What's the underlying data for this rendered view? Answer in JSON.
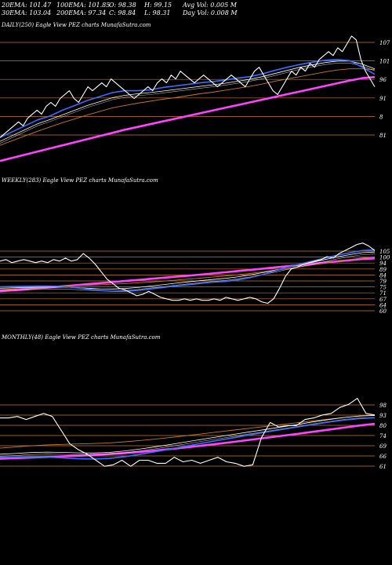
{
  "header": {
    "ema20": "20EMA: 101.47",
    "ema100": "100EMA: 101.85",
    "open": "O: 98.38",
    "high": "H: 99.15",
    "avg_vol": "Avg Vol: 0.005 M",
    "ema30": "30EMA: 103.04",
    "ema200": "200EMA: 97.34",
    "close": "C: 98.84",
    "low": "L: 98.31",
    "day_vol": "Day Vol: 0.008 M"
  },
  "colors": {
    "price": "#ffffff",
    "grid": "#c8782a",
    "ema_fast": "#3a6cff",
    "ema_mid": "#ffffff",
    "ema_slow": "#c8782a",
    "ema_200": "#ff44ff"
  },
  "chart_data": [
    {
      "type": "line",
      "title": "DAILY(250) Eagle View PEZ charts MunafaSutra.com",
      "ticks": [
        "107",
        "101",
        "96",
        "91",
        "8",
        "81"
      ],
      "price": [
        86,
        87,
        88,
        89,
        90,
        89,
        91,
        92,
        93,
        92,
        94,
        95,
        94,
        96,
        97,
        98,
        96,
        95,
        97,
        99,
        98,
        99,
        100,
        99,
        101,
        100,
        99,
        98,
        97,
        96,
        97,
        98,
        99,
        98,
        100,
        101,
        100,
        102,
        101,
        103,
        102,
        101,
        100,
        101,
        102,
        101,
        100,
        99,
        100,
        101,
        102,
        101,
        100,
        99,
        101,
        103,
        104,
        102,
        100,
        98,
        97,
        99,
        101,
        103,
        102,
        104,
        103,
        105,
        104,
        106,
        107,
        108,
        107,
        109,
        108,
        110,
        112,
        111,
        106,
        103,
        101,
        99
      ],
      "ema_fast": [
        86,
        87.5,
        89,
        90.5,
        91.5,
        93,
        94.2,
        95.5,
        96.5,
        97.5,
        98,
        98,
        98.2,
        98.8,
        99.2,
        99.6,
        100,
        100.3,
        100.7,
        101.2,
        101.6,
        102.3,
        103.2,
        104,
        104.7,
        105.3,
        105.8,
        106,
        105.7,
        104,
        102.2
      ],
      "ema_mid": [
        85,
        86.5,
        88,
        89.5,
        90.6,
        91.8,
        93,
        94.2,
        95.2,
        96.2,
        96.8,
        97.2,
        97.5,
        97.9,
        98.3,
        98.7,
        99.1,
        99.5,
        99.9,
        100.4,
        100.9,
        101.6,
        102.4,
        103.2,
        104,
        104.6,
        105.2,
        105.6,
        105.6,
        104.8,
        103.6
      ],
      "ema_slow": [
        84,
        85.2,
        86.4,
        87.6,
        88.7,
        89.8,
        90.8,
        91.8,
        92.7,
        93.6,
        94.2,
        94.8,
        95.3,
        95.8,
        96.2,
        96.7,
        97.2,
        97.6,
        98.1,
        98.6,
        99.1,
        99.7,
        100.4,
        101,
        101.6,
        102.2,
        102.8,
        103.3,
        103.6,
        103.6,
        103.4
      ],
      "ema_200": [
        80,
        80.8,
        81.6,
        82.4,
        83.2,
        84,
        84.8,
        85.6,
        86.4,
        87.2,
        88,
        88.7,
        89.4,
        90.1,
        90.8,
        91.5,
        92.2,
        92.9,
        93.6,
        94.3,
        95,
        95.7,
        96.4,
        97.1,
        97.8,
        98.5,
        99.2,
        99.9,
        100.6,
        101.2,
        101.5
      ],
      "ylim": [
        78,
        114
      ]
    },
    {
      "type": "line",
      "title": "WEEKLY(283) Eagle View PEZ charts MunafaSutra.com",
      "ticks": [
        "105",
        "100",
        "94",
        "89",
        "84",
        "79",
        "75",
        "71",
        "67",
        "64",
        "60"
      ],
      "price": [
        92,
        93,
        91,
        92,
        93,
        92,
        91,
        92,
        91,
        93,
        92,
        94,
        92,
        93,
        97,
        94,
        90,
        85,
        80,
        77,
        74,
        73,
        71,
        69,
        70,
        72,
        70,
        68,
        67,
        66,
        66,
        67,
        66,
        67,
        66,
        66,
        67,
        66,
        68,
        67,
        66,
        67,
        68,
        67,
        65,
        64,
        67,
        74,
        82,
        87,
        88,
        90,
        91,
        92,
        93,
        95,
        94,
        97,
        99,
        101,
        103,
        104,
        102,
        99
      ],
      "ema_fast": [
        75,
        75.2,
        75.3,
        75.4,
        75.4,
        75.2,
        74.5,
        73.5,
        72.5,
        72,
        72,
        72.5,
        73.5,
        74.5,
        75.5,
        76.3,
        77.2,
        78,
        78.5,
        79.5,
        81,
        83,
        85.5,
        88,
        90,
        92,
        94,
        96,
        97.5,
        99,
        99.5
      ],
      "ema_mid": [
        74,
        74.3,
        74.5,
        74.7,
        74.8,
        74.8,
        74.5,
        74,
        73.6,
        73.5,
        73.8,
        74.5,
        75.4,
        76.3,
        77.3,
        78.2,
        79,
        79.8,
        80.5,
        81.5,
        82.8,
        84.3,
        86,
        87.8,
        89.5,
        91.2,
        93,
        94.8,
        96.3,
        97.6,
        98
      ],
      "ema_slow": [
        73,
        73.5,
        74,
        74.5,
        75,
        75.4,
        75.7,
        76,
        76.3,
        76.7,
        77.1,
        77.6,
        78.1,
        78.7,
        79.3,
        80,
        80.7,
        81.4,
        82.1,
        82.9,
        83.8,
        84.8,
        85.9,
        87,
        88.2,
        89.4,
        90.6,
        91.8,
        93,
        94.1,
        94.8
      ],
      "ema_200": [
        72,
        72.6,
        73.2,
        73.9,
        74.6,
        75.3,
        76,
        76.7,
        77.4,
        78.1,
        78.8,
        79.5,
        80.2,
        80.9,
        81.6,
        82.3,
        83,
        83.8,
        84.6,
        85.4,
        86.2,
        87,
        87.8,
        88.6,
        89.4,
        90.2,
        91,
        91.8,
        92.6,
        93.4,
        93.8
      ],
      "ylim": [
        57,
        108
      ]
    },
    {
      "type": "line",
      "title": "MONTHLY(48) Eagle View PEZ charts MunafaSutra.com",
      "ticks": [
        "98",
        "93",
        "80",
        "74",
        "69",
        "66",
        "61"
      ],
      "price": [
        92,
        92,
        93,
        91,
        93,
        95,
        93,
        84,
        75,
        71,
        68,
        64,
        60,
        61,
        64,
        60,
        64,
        64,
        62,
        62,
        66,
        63,
        64,
        62,
        64,
        66,
        63,
        62,
        60,
        61,
        79,
        89,
        86,
        87,
        87,
        91,
        92,
        94,
        95,
        99,
        101,
        105,
        95,
        94
      ],
      "ema_fast": [
        66,
        66,
        66.2,
        66.1,
        65.6,
        65,
        64.8,
        65.2,
        66.4,
        68,
        69.8,
        71.6,
        73.5,
        75.4,
        77.2,
        79,
        80.8,
        82.6,
        84.3,
        86,
        87.6,
        89.2,
        90.6,
        91.6,
        92.2
      ],
      "ema_mid": [
        68,
        68.5,
        69.1,
        69.4,
        69.2,
        68.9,
        68.8,
        69.2,
        70.2,
        71.5,
        73,
        74.6,
        76.3,
        78,
        79.6,
        81.2,
        82.8,
        84.4,
        86,
        87.6,
        89.3,
        90.9,
        92.3,
        93.3,
        93.7
      ],
      "ema_slow": [
        72,
        72.8,
        73.6,
        74.2,
        74.5,
        74.8,
        75.1,
        75.5,
        76.2,
        77.1,
        78.1,
        79.2,
        80.4,
        81.6,
        82.8,
        84,
        85.2,
        86.4,
        87.6,
        88.8,
        90,
        91.2,
        92.3,
        93.2,
        93.7
      ],
      "ema_200": [
        65,
        65.4,
        65.8,
        66.2,
        66.6,
        67,
        67.5,
        68.1,
        68.8,
        69.6,
        70.5,
        71.5,
        72.6,
        73.8,
        75,
        76.2,
        77.5,
        78.8,
        80.1,
        81.4,
        82.8,
        84.2,
        85.6,
        87,
        88.2
      ],
      "ylim": [
        57,
        110
      ]
    }
  ]
}
